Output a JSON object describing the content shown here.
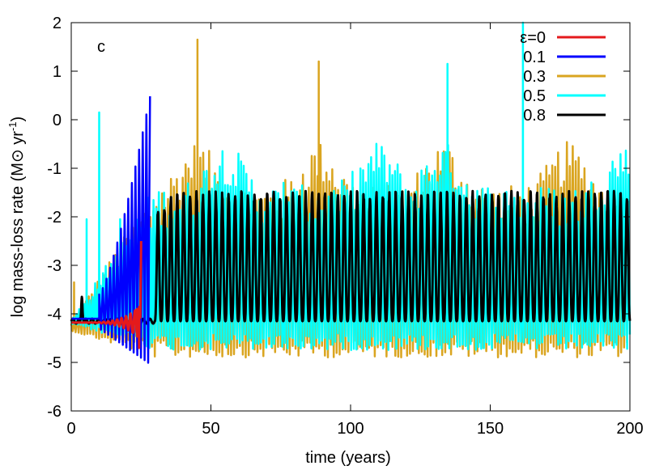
{
  "chart_data": {
    "type": "line",
    "panel_label": "c",
    "xlabel": "time (years)",
    "ylabel": {
      "prefix": "log mass-loss rate (M",
      "sun": "⊙",
      "mid": " yr",
      "sup": "-1",
      "suffix": ")"
    },
    "xlim": [
      0,
      200
    ],
    "ylim": [
      -6,
      2
    ],
    "xticks": [
      0,
      50,
      100,
      150,
      200
    ],
    "yticks": [
      -6,
      -5,
      -4,
      -3,
      -2,
      -1,
      0,
      1,
      2
    ],
    "legend_position": "top-right",
    "grid": false,
    "series": [
      {
        "name": "ε=0",
        "color": "#e41a1c",
        "baseline": -4.18,
        "t_start": 0,
        "t_end": 24.8,
        "period": 1.6,
        "amp_start": 0.0,
        "amp_end": 0.35,
        "spikes": [
          [
            23.5,
            -3.9
          ],
          [
            24.3,
            -4.7
          ],
          [
            25.0,
            -2.5
          ]
        ]
      },
      {
        "name": "0.1",
        "color": "#0000ff",
        "baseline": -4.1,
        "t_start": 10,
        "t_end": 28.6,
        "period": 1.3,
        "low_min": -4.3,
        "low_max": -5.05,
        "high_start": -3.6,
        "high_end": 0.6
      },
      {
        "name": "0.3",
        "color": "#daa520",
        "baseline": -4.2,
        "t_start": 0,
        "t_end": 200,
        "period": 1.05,
        "trough": -4.55,
        "crest_mean": -1.8,
        "burst_centers": [
          45,
          89,
          133,
          178
        ],
        "spikes": [
          [
            45.2,
            1.65
          ],
          [
            88.6,
            1.2
          ],
          [
            1.0,
            -3.35
          ]
        ]
      },
      {
        "name": "0.5",
        "color": "#00ffff",
        "baseline": -4.15,
        "t_start": 0,
        "t_end": 200,
        "period": 0.95,
        "trough": -4.4,
        "crest_mean": -1.8,
        "burst_centers": [
          55,
          110,
          133,
          198
        ],
        "spikes": [
          [
            10.0,
            0.15
          ],
          [
            5.5,
            -2.05
          ],
          [
            17.5,
            -2.05
          ],
          [
            76.0,
            -1.3
          ],
          [
            134.7,
            1.15
          ],
          [
            161.7,
            2.0
          ]
        ]
      },
      {
        "name": "0.8",
        "color": "#000000",
        "baseline": -4.15,
        "t_start": 0,
        "t_end": 200,
        "period": 2.3,
        "peak": -1.55,
        "t_begin_osc": 30
      }
    ]
  }
}
